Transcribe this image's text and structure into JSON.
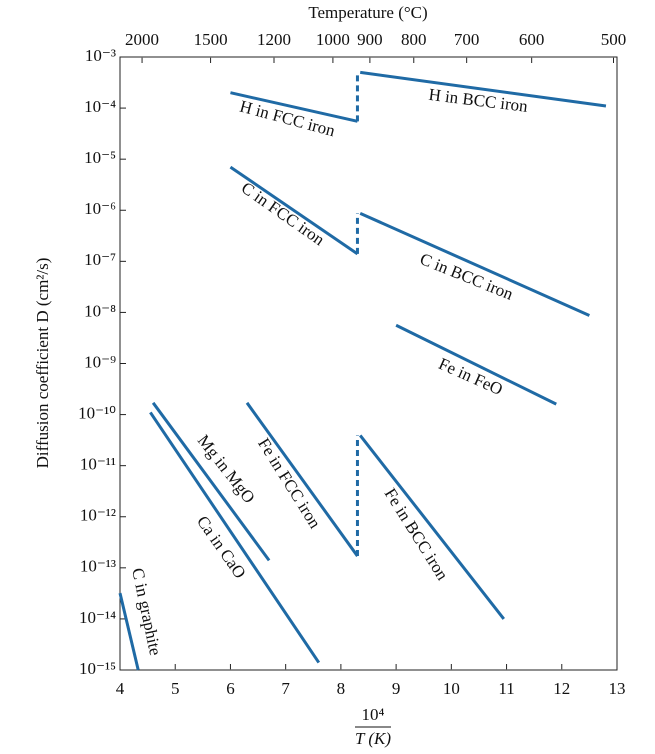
{
  "chart_data": {
    "type": "line",
    "x_label": {
      "numerator": "10⁴",
      "denominator": "T (K)"
    },
    "y_label": "Diffusion coefficient D (cm²/s)",
    "x2_label": "Temperature (°C)",
    "log_y": true,
    "grid": true,
    "color": "#1f6aa5",
    "xlim": [
      4,
      13
    ],
    "xticks": [
      4,
      5,
      6,
      7,
      8,
      9,
      10,
      11,
      12,
      13
    ],
    "x2ticks": [
      2000,
      1500,
      1200,
      1000,
      900,
      800,
      700,
      600,
      500
    ],
    "ylim": [
      1e-15,
      0.001
    ],
    "yticks": [
      {
        "value": 1e-15,
        "label": "10⁻¹⁵"
      },
      {
        "value": 1e-14,
        "label": "10⁻¹⁴"
      },
      {
        "value": 1e-13,
        "label": "10⁻¹³"
      },
      {
        "value": 1e-12,
        "label": "10⁻¹²"
      },
      {
        "value": 1e-11,
        "label": "10⁻¹¹"
      },
      {
        "value": 1e-10,
        "label": "10⁻¹⁰"
      },
      {
        "value": 1e-09,
        "label": "10⁻⁹"
      },
      {
        "value": 1e-08,
        "label": "10⁻⁸"
      },
      {
        "value": 1e-07,
        "label": "10⁻⁷"
      },
      {
        "value": 1e-06,
        "label": "10⁻⁶"
      },
      {
        "value": 1e-05,
        "label": "10⁻⁵"
      },
      {
        "value": 0.0001,
        "label": "10⁻⁴"
      },
      {
        "value": 0.001,
        "label": "10⁻³"
      }
    ],
    "series": [
      {
        "name": "H in FCC iron",
        "x": [
          6.0,
          8.3
        ],
        "values": [
          0.0002,
          5.5e-05
        ]
      },
      {
        "name": "H in BCC iron",
        "x": [
          8.35,
          12.8
        ],
        "values": [
          0.0005,
          0.00011
        ]
      },
      {
        "name": "C in FCC iron",
        "x": [
          6.0,
          8.3
        ],
        "values": [
          7e-06,
          1.4e-07
        ]
      },
      {
        "name": "C in BCC iron",
        "x": [
          8.35,
          12.5
        ],
        "values": [
          8.7e-07,
          8.7e-09
        ]
      },
      {
        "name": "Fe in FeO",
        "x": [
          9.0,
          11.9
        ],
        "values": [
          5.6e-09,
          1.6e-10
        ]
      },
      {
        "name": "Mg in MgO",
        "x": [
          4.6,
          6.7
        ],
        "values": [
          1.7e-10,
          1.4e-13
        ]
      },
      {
        "name": "Ca in CaO",
        "x": [
          4.55,
          7.6
        ],
        "values": [
          1.1e-10,
          1.4e-15
        ]
      },
      {
        "name": "Fe in FCC iron",
        "x": [
          6.3,
          8.3
        ],
        "values": [
          1.7e-10,
          1.7e-13
        ]
      },
      {
        "name": "Fe in BCC iron",
        "x": [
          8.35,
          10.95
        ],
        "values": [
          3.9e-11,
          1e-14
        ]
      },
      {
        "name": "C in graphite",
        "x": [
          4.0,
          4.33
        ],
        "values": [
          3.2e-14,
          1e-15
        ]
      }
    ]
  }
}
